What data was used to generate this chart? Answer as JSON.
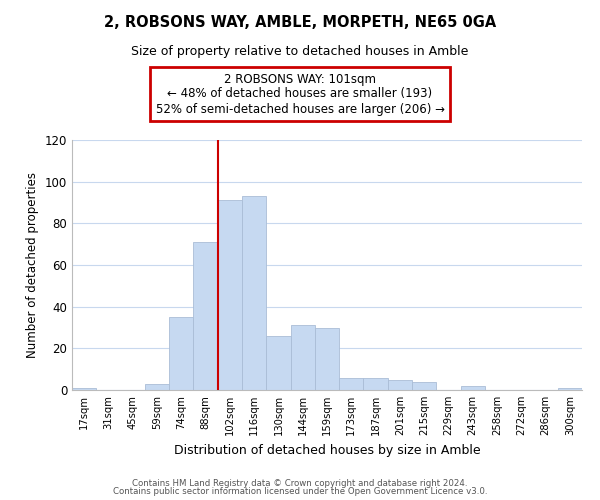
{
  "title": "2, ROBSONS WAY, AMBLE, MORPETH, NE65 0GA",
  "subtitle": "Size of property relative to detached houses in Amble",
  "xlabel": "Distribution of detached houses by size in Amble",
  "ylabel": "Number of detached properties",
  "bar_labels": [
    "17sqm",
    "31sqm",
    "45sqm",
    "59sqm",
    "74sqm",
    "88sqm",
    "102sqm",
    "116sqm",
    "130sqm",
    "144sqm",
    "159sqm",
    "173sqm",
    "187sqm",
    "201sqm",
    "215sqm",
    "229sqm",
    "243sqm",
    "258sqm",
    "272sqm",
    "286sqm",
    "300sqm"
  ],
  "bar_values": [
    1,
    0,
    0,
    3,
    35,
    71,
    91,
    93,
    26,
    31,
    30,
    6,
    6,
    5,
    4,
    0,
    2,
    0,
    0,
    0,
    1
  ],
  "bar_color": "#c6d9f1",
  "bar_edge_color": "#aabdd6",
  "property_line_index": 6,
  "ylim": [
    0,
    120
  ],
  "yticks": [
    0,
    20,
    40,
    60,
    80,
    100,
    120
  ],
  "annotation_title": "2 ROBSONS WAY: 101sqm",
  "annotation_line1": "← 48% of detached houses are smaller (193)",
  "annotation_line2": "52% of semi-detached houses are larger (206) →",
  "footer1": "Contains HM Land Registry data © Crown copyright and database right 2024.",
  "footer2": "Contains public sector information licensed under the Open Government Licence v3.0.",
  "property_line_color": "#cc0000",
  "annotation_box_edge": "#cc0000",
  "grid_color": "#c8d8ee"
}
